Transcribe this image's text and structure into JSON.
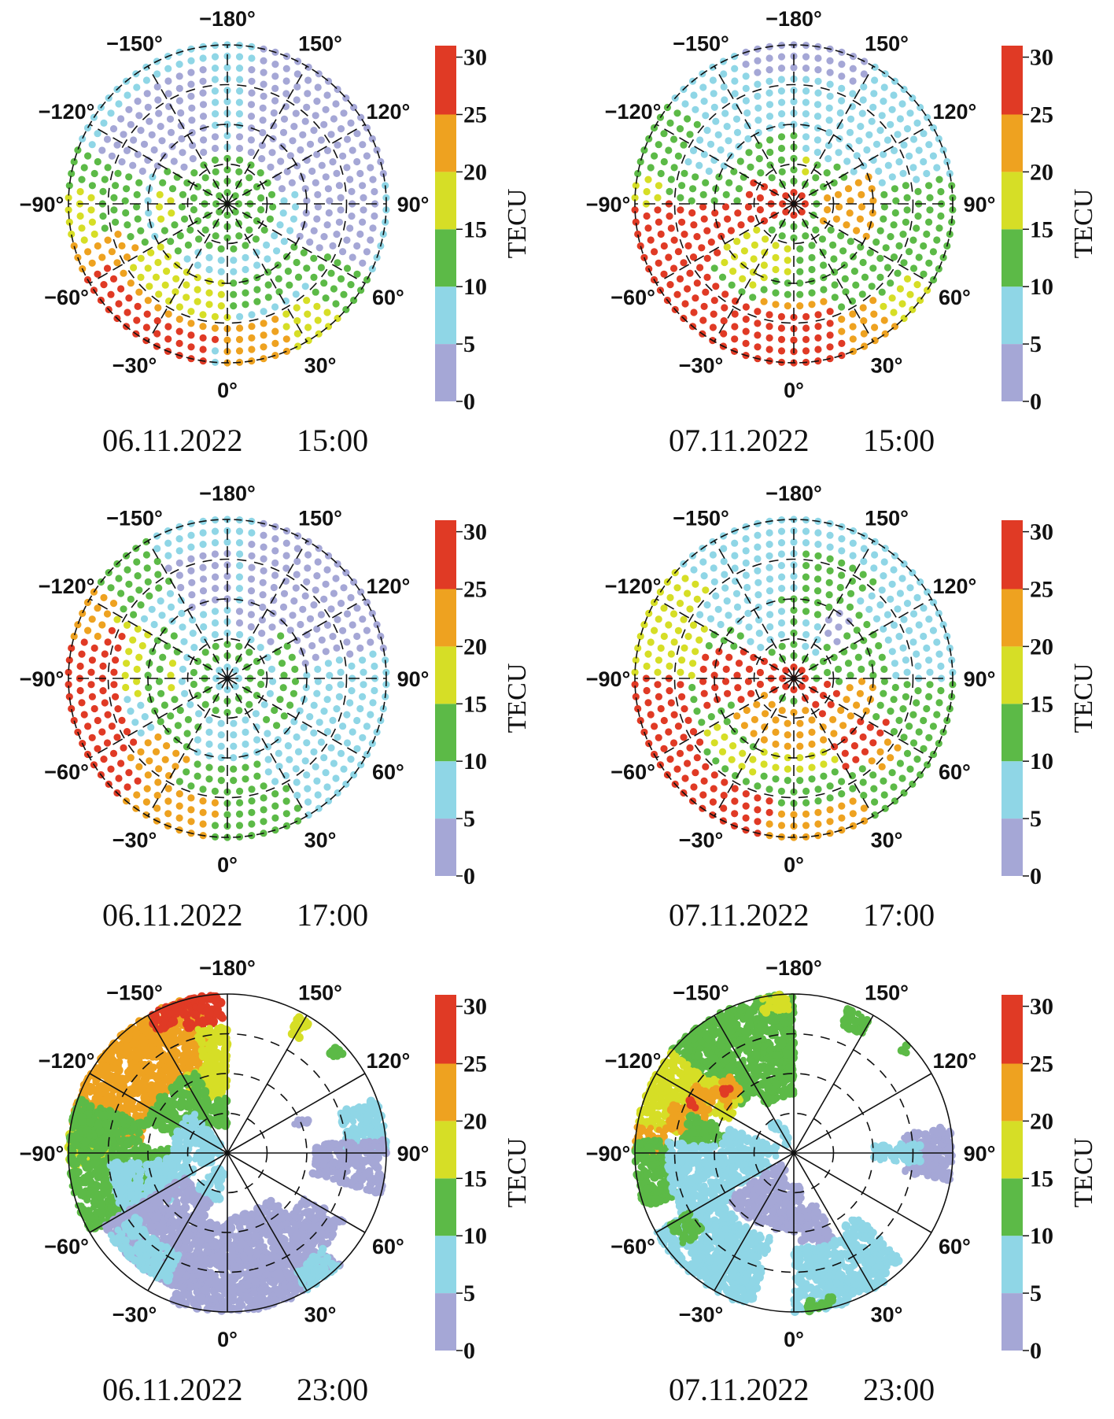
{
  "chart_data": {
    "type": "scatter",
    "description": "Polar maps of total electron content (TEC) over the polar cap, 2x3 panel grid",
    "colorbar": {
      "label": "TECU",
      "range": [
        0,
        31
      ],
      "ticks": [
        0,
        5,
        10,
        15,
        20,
        25,
        30
      ],
      "tick_labels": [
        "0",
        "5",
        "10",
        "15",
        "20",
        "25",
        "30"
      ],
      "bins": [
        {
          "min": 0,
          "max": 5,
          "color": "#a5a7d6"
        },
        {
          "min": 5,
          "max": 10,
          "color": "#8fd6e6"
        },
        {
          "min": 10,
          "max": 15,
          "color": "#5cba47"
        },
        {
          "min": 15,
          "max": 20,
          "color": "#d6de26"
        },
        {
          "min": 20,
          "max": 25,
          "color": "#eea220"
        },
        {
          "min": 25,
          "max": 31,
          "color": "#e03a25"
        }
      ]
    },
    "azimuth_labels": [
      "0°",
      "30°",
      "60°",
      "90°",
      "120°",
      "150°",
      "−180°",
      "−150°",
      "−120°",
      "−90°",
      "−60°",
      "−30°"
    ],
    "azimuth_values": [
      0,
      30,
      60,
      90,
      120,
      150,
      -180,
      -150,
      -120,
      -90,
      -60,
      -30
    ],
    "rings": 4,
    "panels": [
      {
        "id": "p1",
        "date": "06.11.2022",
        "time": "15:00",
        "style": "grid",
        "regions": [
          [
            -180,
            180,
            0,
            1,
            5
          ],
          [
            100,
            170,
            0.25,
            1,
            0
          ],
          [
            -170,
            -110,
            0.35,
            0.9,
            0
          ],
          [
            60,
            110,
            0.5,
            0.95,
            0
          ],
          [
            -180,
            180,
            0,
            0.3,
            10
          ],
          [
            -120,
            -40,
            0.25,
            0.45,
            10
          ],
          [
            -100,
            -70,
            0.32,
            0.45,
            15
          ],
          [
            -110,
            -60,
            0.55,
            1,
            10
          ],
          [
            -95,
            -55,
            0.8,
            1,
            15
          ],
          [
            -75,
            -35,
            0.7,
            1,
            20
          ],
          [
            -65,
            -30,
            0.55,
            0.7,
            20
          ],
          [
            -60,
            0,
            0.5,
            0.75,
            15
          ],
          [
            -60,
            0,
            0.75,
            0.85,
            20
          ],
          [
            0,
            60,
            0.5,
            0.7,
            10
          ],
          [
            0,
            40,
            0.75,
            1,
            20
          ],
          [
            25,
            45,
            0.75,
            1,
            15
          ],
          [
            45,
            65,
            0.7,
            1,
            10
          ],
          [
            -65,
            -5,
            0.85,
            1,
            25
          ]
        ]
      },
      {
        "id": "p2",
        "date": "07.11.2022",
        "time": "15:00",
        "style": "grid",
        "regions": [
          [
            -180,
            180,
            0,
            1,
            10
          ],
          [
            100,
            180,
            0.4,
            1,
            5
          ],
          [
            -180,
            -130,
            0.5,
            1,
            5
          ],
          [
            150,
            180,
            0.85,
            1,
            0
          ],
          [
            -180,
            -160,
            0.85,
            1,
            0
          ],
          [
            -130,
            -110,
            0.45,
            0.75,
            5
          ],
          [
            140,
            180,
            0.3,
            0.45,
            5
          ],
          [
            -180,
            180,
            0,
            0.1,
            25
          ],
          [
            -130,
            -60,
            0.1,
            0.35,
            25
          ],
          [
            -90,
            -60,
            0.35,
            0.55,
            25
          ],
          [
            60,
            110,
            0.15,
            0.55,
            20
          ],
          [
            -60,
            0,
            0.25,
            0.45,
            15
          ],
          [
            -60,
            -20,
            0.45,
            0.6,
            15
          ],
          [
            -20,
            20,
            0.6,
            0.7,
            20
          ],
          [
            -90,
            -55,
            0.55,
            1,
            25
          ],
          [
            -55,
            20,
            0.7,
            1,
            25
          ],
          [
            20,
            40,
            0.75,
            1,
            20
          ],
          [
            40,
            60,
            0.8,
            1,
            15
          ],
          [
            -100,
            -90,
            0.85,
            1,
            15
          ],
          [
            160,
            180,
            0.2,
            0.3,
            15
          ]
        ]
      },
      {
        "id": "p3",
        "date": "06.11.2022",
        "time": "17:00",
        "style": "grid",
        "regions": [
          [
            -180,
            180,
            0,
            1,
            5
          ],
          [
            100,
            170,
            0.3,
            1,
            0
          ],
          [
            -180,
            -150,
            0.45,
            0.85,
            0
          ],
          [
            -180,
            180,
            0.08,
            0.25,
            10
          ],
          [
            40,
            130,
            0.3,
            0.45,
            10
          ],
          [
            -130,
            -30,
            0.3,
            0.55,
            10
          ],
          [
            -110,
            -70,
            0.3,
            0.42,
            15
          ],
          [
            -140,
            -110,
            0.65,
            1,
            15
          ],
          [
            -150,
            -120,
            0.65,
            1,
            10
          ],
          [
            -120,
            -80,
            0.55,
            0.7,
            15
          ],
          [
            -115,
            -70,
            0.7,
            1,
            25
          ],
          [
            -125,
            -105,
            0.85,
            1,
            20
          ],
          [
            -70,
            -40,
            0.7,
            1,
            25
          ],
          [
            -55,
            -25,
            0.55,
            0.8,
            20
          ],
          [
            -40,
            -5,
            0.75,
            1,
            20
          ],
          [
            -25,
            20,
            0.55,
            0.75,
            10
          ],
          [
            -5,
            30,
            0.75,
            1,
            10
          ]
        ]
      },
      {
        "id": "p4",
        "date": "07.11.2022",
        "time": "17:00",
        "style": "grid",
        "regions": [
          [
            -180,
            180,
            0,
            1,
            10
          ],
          [
            -180,
            -120,
            0.55,
            1,
            5
          ],
          [
            120,
            180,
            0.8,
            1,
            5
          ],
          [
            90,
            140,
            0.6,
            1,
            5
          ],
          [
            -170,
            -130,
            0.25,
            0.55,
            5
          ],
          [
            140,
            180,
            0.2,
            0.4,
            5
          ],
          [
            130,
            150,
            0.35,
            0.5,
            0
          ],
          [
            -180,
            180,
            0,
            0.1,
            25
          ],
          [
            -120,
            -60,
            0.1,
            0.4,
            25
          ],
          [
            -110,
            -70,
            0.4,
            0.6,
            25
          ],
          [
            30,
            80,
            0.1,
            0.3,
            25
          ],
          [
            20,
            90,
            0.3,
            0.5,
            20
          ],
          [
            30,
            65,
            0.5,
            0.65,
            25
          ],
          [
            -60,
            30,
            0.2,
            0.45,
            20
          ],
          [
            -30,
            30,
            0.45,
            0.6,
            15
          ],
          [
            -60,
            -20,
            0.55,
            0.7,
            15
          ],
          [
            -120,
            -90,
            0.6,
            1,
            15
          ],
          [
            -90,
            -50,
            0.65,
            1,
            25
          ],
          [
            -50,
            -10,
            0.75,
            1,
            25
          ],
          [
            -10,
            30,
            0.8,
            1,
            20
          ],
          [
            40,
            60,
            0.7,
            0.85,
            20
          ],
          [
            -135,
            -115,
            0.75,
            1,
            15
          ]
        ]
      },
      {
        "id": "p5",
        "date": "06.11.2022",
        "time": "23:00",
        "style": "blob",
        "regions": [
          [
            -170,
            -140,
            0.55,
            1,
            20
          ],
          [
            -140,
            -95,
            0.55,
            1,
            20
          ],
          [
            -178,
            -162,
            0.8,
            1,
            25
          ],
          [
            -162,
            -150,
            0.88,
            1,
            25
          ],
          [
            -180,
            -165,
            0.35,
            0.8,
            15
          ],
          [
            -165,
            -150,
            0.35,
            0.55,
            15
          ],
          [
            -100,
            -85,
            0.75,
            1,
            15
          ],
          [
            -180,
            -160,
            0.15,
            0.35,
            10
          ],
          [
            -160,
            -110,
            0.2,
            0.55,
            10
          ],
          [
            -110,
            -60,
            0.55,
            1,
            10
          ],
          [
            -95,
            -70,
            0.35,
            0.55,
            10
          ],
          [
            -140,
            -60,
            0.05,
            0.35,
            5
          ],
          [
            -85,
            -50,
            0.35,
            0.75,
            5
          ],
          [
            -60,
            -20,
            0.3,
            0.9,
            0
          ],
          [
            -20,
            0,
            0.45,
            1,
            0
          ],
          [
            0,
            45,
            0.4,
            1,
            0
          ],
          [
            45,
            60,
            0.55,
            0.85,
            0
          ],
          [
            30,
            45,
            0.85,
            1,
            5
          ],
          [
            -55,
            -25,
            0.7,
            0.9,
            5
          ],
          [
            148,
            153,
            0.85,
            0.97,
            15
          ],
          [
            130,
            135,
            0.9,
            0.97,
            10
          ],
          [
            90,
            110,
            0.75,
            1,
            5
          ],
          [
            75,
            95,
            0.55,
            1,
            0
          ],
          [
            110,
            115,
            0.45,
            0.55,
            0
          ],
          [
            -40,
            -10,
            0.1,
            0.3,
            5
          ]
        ]
      },
      {
        "id": "p6",
        "date": "07.11.2022",
        "time": "23:00",
        "style": "blob",
        "regions": [
          [
            -180,
            -150,
            0.55,
            1,
            10
          ],
          [
            -150,
            -130,
            0.45,
            1,
            10
          ],
          [
            -180,
            -150,
            0.35,
            0.55,
            10
          ],
          [
            -178,
            -168,
            0.9,
            1,
            15
          ],
          [
            -130,
            -100,
            0.7,
            1,
            15
          ],
          [
            -135,
            -115,
            0.45,
            0.7,
            15
          ],
          [
            -125,
            -110,
            0.6,
            0.75,
            20
          ],
          [
            -140,
            -125,
            0.5,
            0.65,
            20
          ],
          [
            -112,
            -100,
            0.7,
            0.82,
            20
          ],
          [
            -100,
            -88,
            0.82,
            1,
            20
          ],
          [
            -136,
            -130,
            0.55,
            0.6,
            25
          ],
          [
            -118,
            -114,
            0.68,
            0.73,
            25
          ],
          [
            -110,
            -95,
            0.45,
            0.7,
            10
          ],
          [
            -95,
            -70,
            0.78,
            1,
            10
          ],
          [
            -110,
            -60,
            0.1,
            0.45,
            5
          ],
          [
            -95,
            -55,
            0.45,
            0.8,
            5
          ],
          [
            -60,
            -15,
            0.55,
            1,
            5
          ],
          [
            -55,
            -20,
            0.1,
            0.5,
            0
          ],
          [
            -20,
            10,
            0.2,
            0.5,
            0
          ],
          [
            5,
            25,
            0.35,
            0.6,
            0
          ],
          [
            0,
            35,
            0.6,
            1,
            5
          ],
          [
            35,
            45,
            0.55,
            0.95,
            5
          ],
          [
            80,
            100,
            0.7,
            1,
            0
          ],
          [
            -60,
            -50,
            0.75,
            0.9,
            10
          ],
          [
            5,
            15,
            0.93,
            1,
            10
          ],
          [
            -160,
            -140,
            0.05,
            0.25,
            5
          ],
          [
            150,
            160,
            0.85,
            0.97,
            10
          ],
          [
            130,
            134,
            0.92,
            0.98,
            10
          ],
          [
            85,
            95,
            0.5,
            0.8,
            5
          ]
        ]
      }
    ]
  }
}
